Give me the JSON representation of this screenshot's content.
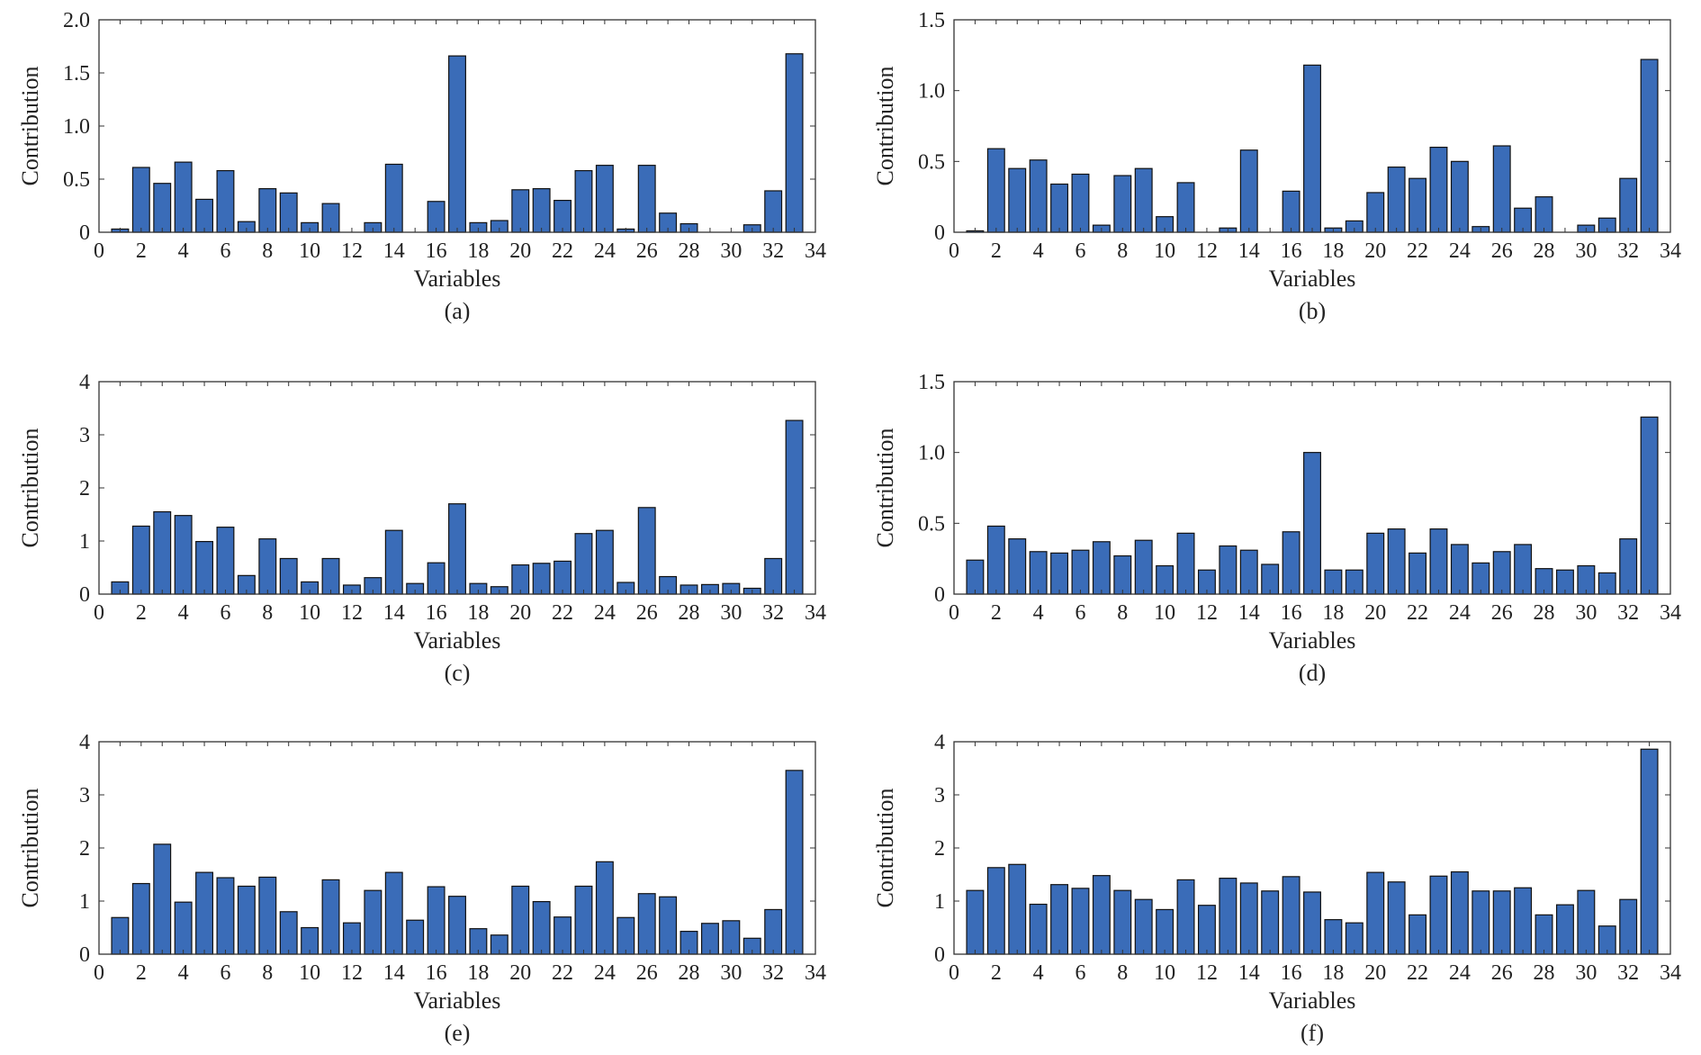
{
  "figure": {
    "bar_color": "#3a6cb8",
    "bar_edge": "#111111",
    "axis_color": "#333333"
  },
  "chart_data": [
    {
      "panel": "(a)",
      "type": "bar",
      "xlabel": "Variables",
      "ylabel": "Contribution",
      "xlim": [
        0,
        34
      ],
      "ylim": [
        0,
        2.0
      ],
      "xticks": [
        "0",
        "2",
        "4",
        "6",
        "8",
        "10",
        "12",
        "14",
        "16",
        "18",
        "20",
        "22",
        "24",
        "26",
        "28",
        "30",
        "32",
        "34"
      ],
      "yticks": [
        "0",
        "0.5",
        "1.0",
        "1.5",
        "2.0"
      ],
      "ytick_values": [
        0,
        0.5,
        1.0,
        1.5,
        2.0
      ],
      "categories": [
        1,
        2,
        3,
        4,
        5,
        6,
        7,
        8,
        9,
        10,
        11,
        12,
        13,
        14,
        15,
        16,
        17,
        18,
        19,
        20,
        21,
        22,
        23,
        24,
        25,
        26,
        27,
        28,
        29,
        30,
        31,
        32,
        33
      ],
      "values": [
        0.03,
        0.61,
        0.46,
        0.66,
        0.31,
        0.58,
        0.1,
        0.41,
        0.37,
        0.09,
        0.27,
        0.0,
        0.09,
        0.64,
        0.0,
        0.29,
        1.66,
        0.09,
        0.11,
        0.4,
        0.41,
        0.3,
        0.58,
        0.63,
        0.03,
        0.63,
        0.18,
        0.08,
        0.0,
        0.0,
        0.07,
        0.39,
        1.68
      ]
    },
    {
      "panel": "(b)",
      "type": "bar",
      "xlabel": "Variables",
      "ylabel": "Contribution",
      "xlim": [
        0,
        34
      ],
      "ylim": [
        0,
        1.5
      ],
      "xticks": [
        "0",
        "2",
        "4",
        "6",
        "8",
        "10",
        "12",
        "14",
        "16",
        "18",
        "20",
        "22",
        "24",
        "26",
        "28",
        "30",
        "32",
        "34"
      ],
      "yticks": [
        "0",
        "0.5",
        "1.0",
        "1.5"
      ],
      "ytick_values": [
        0,
        0.5,
        1.0,
        1.5
      ],
      "categories": [
        1,
        2,
        3,
        4,
        5,
        6,
        7,
        8,
        9,
        10,
        11,
        12,
        13,
        14,
        15,
        16,
        17,
        18,
        19,
        20,
        21,
        22,
        23,
        24,
        25,
        26,
        27,
        28,
        29,
        30,
        31,
        32,
        33
      ],
      "values": [
        0.01,
        0.59,
        0.45,
        0.51,
        0.34,
        0.41,
        0.05,
        0.4,
        0.45,
        0.11,
        0.35,
        0.0,
        0.03,
        0.58,
        0.0,
        0.29,
        1.18,
        0.03,
        0.08,
        0.28,
        0.46,
        0.38,
        0.6,
        0.5,
        0.04,
        0.61,
        0.17,
        0.25,
        0.0,
        0.05,
        0.1,
        0.38,
        1.22
      ]
    },
    {
      "panel": "(c)",
      "type": "bar",
      "xlabel": "Variables",
      "ylabel": "Contribution",
      "xlim": [
        0,
        34
      ],
      "ylim": [
        0,
        4
      ],
      "xticks": [
        "0",
        "2",
        "4",
        "6",
        "8",
        "10",
        "12",
        "14",
        "16",
        "18",
        "20",
        "22",
        "24",
        "26",
        "28",
        "30",
        "32",
        "34"
      ],
      "yticks": [
        "0",
        "1",
        "2",
        "3",
        "4"
      ],
      "ytick_values": [
        0,
        1,
        2,
        3,
        4
      ],
      "categories": [
        1,
        2,
        3,
        4,
        5,
        6,
        7,
        8,
        9,
        10,
        11,
        12,
        13,
        14,
        15,
        16,
        17,
        18,
        19,
        20,
        21,
        22,
        23,
        24,
        25,
        26,
        27,
        28,
        29,
        30,
        31,
        32,
        33
      ],
      "values": [
        0.23,
        1.28,
        1.55,
        1.48,
        0.99,
        1.26,
        0.35,
        1.04,
        0.67,
        0.23,
        0.67,
        0.17,
        0.31,
        1.2,
        0.2,
        0.59,
        1.7,
        0.2,
        0.14,
        0.55,
        0.58,
        0.62,
        1.14,
        1.2,
        0.22,
        1.63,
        0.33,
        0.17,
        0.18,
        0.2,
        0.11,
        0.67,
        3.27
      ]
    },
    {
      "panel": "(d)",
      "type": "bar",
      "xlabel": "Variables",
      "ylabel": "Contribution",
      "xlim": [
        0,
        34
      ],
      "ylim": [
        0,
        1.5
      ],
      "xticks": [
        "0",
        "2",
        "4",
        "6",
        "8",
        "10",
        "12",
        "14",
        "16",
        "18",
        "20",
        "22",
        "24",
        "26",
        "28",
        "30",
        "32",
        "34"
      ],
      "yticks": [
        "0",
        "0.5",
        "1.0",
        "1.5"
      ],
      "ytick_values": [
        0,
        0.5,
        1.0,
        1.5
      ],
      "categories": [
        1,
        2,
        3,
        4,
        5,
        6,
        7,
        8,
        9,
        10,
        11,
        12,
        13,
        14,
        15,
        16,
        17,
        18,
        19,
        20,
        21,
        22,
        23,
        24,
        25,
        26,
        27,
        28,
        29,
        30,
        31,
        32,
        33
      ],
      "values": [
        0.24,
        0.48,
        0.39,
        0.3,
        0.29,
        0.31,
        0.37,
        0.27,
        0.38,
        0.2,
        0.43,
        0.17,
        0.34,
        0.31,
        0.21,
        0.44,
        1.0,
        0.17,
        0.17,
        0.43,
        0.46,
        0.29,
        0.46,
        0.35,
        0.22,
        0.3,
        0.35,
        0.18,
        0.17,
        0.2,
        0.15,
        0.39,
        1.25
      ]
    },
    {
      "panel": "(e)",
      "type": "bar",
      "xlabel": "Variables",
      "ylabel": "Contribution",
      "xlim": [
        0,
        34
      ],
      "ylim": [
        0,
        4
      ],
      "xticks": [
        "0",
        "2",
        "4",
        "6",
        "8",
        "10",
        "12",
        "14",
        "16",
        "18",
        "20",
        "22",
        "24",
        "26",
        "28",
        "30",
        "32",
        "34"
      ],
      "yticks": [
        "0",
        "1",
        "2",
        "3",
        "4"
      ],
      "ytick_values": [
        0,
        1,
        2,
        3,
        4
      ],
      "categories": [
        1,
        2,
        3,
        4,
        5,
        6,
        7,
        8,
        9,
        10,
        11,
        12,
        13,
        14,
        15,
        16,
        17,
        18,
        19,
        20,
        21,
        22,
        23,
        24,
        25,
        26,
        27,
        28,
        29,
        30,
        31,
        32,
        33
      ],
      "values": [
        0.69,
        1.33,
        2.07,
        0.98,
        1.54,
        1.44,
        1.28,
        1.45,
        0.8,
        0.5,
        1.4,
        0.59,
        1.2,
        1.54,
        0.64,
        1.27,
        1.09,
        0.48,
        0.36,
        1.28,
        0.99,
        0.7,
        1.28,
        1.74,
        0.69,
        1.14,
        1.08,
        0.43,
        0.58,
        0.63,
        0.3,
        0.84,
        3.46
      ]
    },
    {
      "panel": "(f)",
      "type": "bar",
      "xlabel": "Variables",
      "ylabel": "Contribution",
      "xlim": [
        0,
        34
      ],
      "ylim": [
        0,
        4
      ],
      "xticks": [
        "0",
        "2",
        "4",
        "6",
        "8",
        "10",
        "12",
        "14",
        "16",
        "18",
        "20",
        "22",
        "24",
        "26",
        "28",
        "30",
        "32",
        "34"
      ],
      "yticks": [
        "0",
        "1",
        "2",
        "3",
        "4"
      ],
      "ytick_values": [
        0,
        1,
        2,
        3,
        4
      ],
      "categories": [
        1,
        2,
        3,
        4,
        5,
        6,
        7,
        8,
        9,
        10,
        11,
        12,
        13,
        14,
        15,
        16,
        17,
        18,
        19,
        20,
        21,
        22,
        23,
        24,
        25,
        26,
        27,
        28,
        29,
        30,
        31,
        32,
        33
      ],
      "values": [
        1.2,
        1.63,
        1.69,
        0.94,
        1.31,
        1.24,
        1.48,
        1.2,
        1.03,
        0.84,
        1.4,
        0.92,
        1.43,
        1.34,
        1.19,
        1.46,
        1.17,
        0.65,
        0.59,
        1.54,
        1.36,
        0.74,
        1.47,
        1.55,
        1.19,
        1.19,
        1.25,
        0.74,
        0.93,
        1.2,
        0.53,
        1.03,
        3.86
      ]
    }
  ]
}
